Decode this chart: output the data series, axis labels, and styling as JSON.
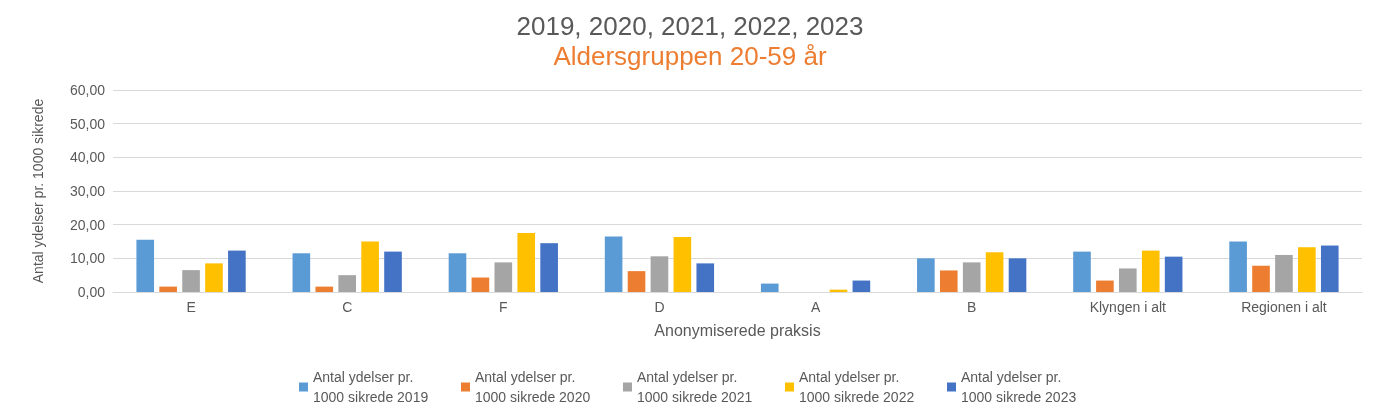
{
  "chart_data": {
    "type": "bar",
    "title": "2019, 2020, 2021, 2022, 2023",
    "subtitle": "Aldersgruppen 20-59 år",
    "xlabel": "Anonymiserede praksis",
    "ylabel": "Antal ydelser pr. 1000 sikrede",
    "categories": [
      "E",
      "C",
      "F",
      "D",
      "A",
      "B",
      "Klyngen i alt",
      "Regionen i alt"
    ],
    "series": [
      {
        "name": "Antal ydelser pr. 1000 sikrede 2019",
        "color": "#5b9bd5",
        "values": [
          15.5,
          11.5,
          11.5,
          16.5,
          2.5,
          10,
          12,
          15
        ]
      },
      {
        "name": "Antal ydelser pr. 1000 sikrede 2020",
        "color": "#ed7d31",
        "values": [
          1.6,
          1.6,
          4.3,
          6.2,
          0,
          6.4,
          3.4,
          7.8
        ]
      },
      {
        "name": "Antal ydelser pr. 1000 sikrede 2021",
        "color": "#a5a5a5",
        "values": [
          6.5,
          5,
          8.8,
          10.6,
          0,
          8.8,
          7,
          11
        ]
      },
      {
        "name": "Antal ydelser pr. 1000 sikrede 2022",
        "color": "#ffc000",
        "values": [
          8.5,
          15,
          17.5,
          16.3,
          0.7,
          11.8,
          12.3,
          13.3
        ]
      },
      {
        "name": "Antal ydelser pr. 1000 sikrede 2023",
        "color": "#4472c4",
        "values": [
          12.3,
          12,
          14.5,
          8.5,
          3.4,
          10,
          10.5,
          13.8
        ]
      }
    ],
    "ylim": [
      0,
      60
    ],
    "yticks": [
      {
        "value": 0,
        "label": "0,00"
      },
      {
        "value": 10,
        "label": "10,00"
      },
      {
        "value": 20,
        "label": "20,00"
      },
      {
        "value": 30,
        "label": "30,00"
      },
      {
        "value": 40,
        "label": "40,00"
      },
      {
        "value": 50,
        "label": "50,00"
      },
      {
        "value": 60,
        "label": "60,00"
      }
    ],
    "grid": "y",
    "legend": "bottom"
  }
}
